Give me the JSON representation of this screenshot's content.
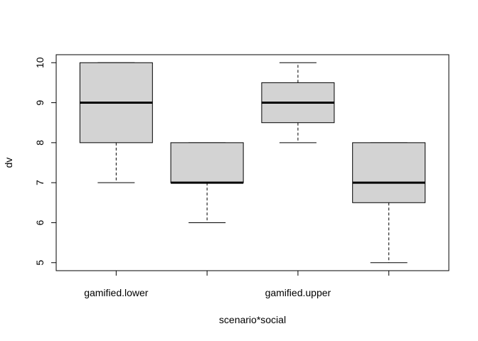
{
  "chart_data": {
    "type": "boxplot",
    "title": "",
    "xlabel": "scenario*social",
    "ylabel": "dv",
    "ylim": [
      4.8,
      10.2
    ],
    "yticks": [
      5,
      6,
      7,
      8,
      9,
      10
    ],
    "categories": [
      "gamified.lower",
      "",
      "gamified.upper",
      ""
    ],
    "tick_labels": [
      "gamified.lower",
      "gamified.upper"
    ],
    "box_fill": "#d3d3d3",
    "grid": false,
    "boxes": [
      {
        "min": 7,
        "q1": 8,
        "median": 9,
        "q3": 10,
        "max": 10
      },
      {
        "min": 6,
        "q1": 7,
        "median": 7,
        "q3": 8,
        "max": 8
      },
      {
        "min": 8,
        "q1": 8.5,
        "median": 9,
        "q3": 9.5,
        "max": 10
      },
      {
        "min": 5,
        "q1": 6.5,
        "median": 7,
        "q3": 8,
        "max": 8
      }
    ]
  }
}
